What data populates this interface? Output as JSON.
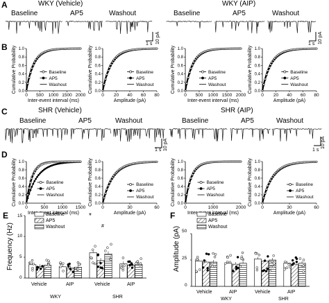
{
  "panels": {
    "A": "A",
    "B": "B",
    "C": "C",
    "D": "D",
    "E": "E",
    "F": "F"
  },
  "row_A": {
    "group_titles": [
      "WKY (Vehicle)",
      "WKY (AIP)"
    ],
    "conditions": [
      "Baseline",
      "AP5",
      "Washout"
    ],
    "scale_time": "1 s",
    "scale_amp": "10 pA"
  },
  "row_C": {
    "group_titles": [
      "SHR (Vehicle)",
      "SHR (AIP)"
    ],
    "conditions": [
      "Baseline",
      "AP5",
      "Washout"
    ],
    "scale_time": "1 s",
    "scale_amp": "10 pA"
  },
  "cdf_legend": [
    "Baseline",
    "AP5",
    "Washout"
  ],
  "cdf_plots": {
    "B_interval": {
      "ylabel": "Cumulative Probability",
      "xlabel": "Inter-event interval (ms)",
      "xticks": [
        "0",
        "500",
        "1000",
        "1500",
        "2000"
      ],
      "yticks": [
        "0.0",
        "0.2",
        "0.4",
        "0.6",
        "0.8",
        "1.0"
      ]
    },
    "B_amplitude": {
      "ylabel": "Cumulative Probability",
      "xlabel": "Amplitude (pA)",
      "xticks": [
        "0",
        "20",
        "40",
        "60",
        "80"
      ],
      "yticks": [
        "0.0",
        "0.2",
        "0.4",
        "0.6",
        "0.8",
        "1.0"
      ]
    },
    "B_interval_aip": {
      "ylabel": "Cumulative Probability",
      "xlabel": "Inter-event interval (ms)",
      "xticks": [
        "0",
        "500",
        "1000",
        "1500",
        "2000"
      ],
      "yticks": [
        "0.0",
        "0.2",
        "0.4",
        "0.6",
        "0.8",
        "1.0"
      ]
    },
    "B_amplitude_aip": {
      "ylabel": "Cumulative Probability",
      "xlabel": "Amplitude (pA)",
      "xticks": [
        "0",
        "20",
        "40",
        "60",
        "80"
      ],
      "yticks": [
        "0.0",
        "0.2",
        "0.4",
        "0.6",
        "0.8",
        "1.0"
      ]
    },
    "D_interval": {
      "ylabel": "Cumulative Probability",
      "xlabel": "Inter-event interval (ms)",
      "xticks": [
        "0",
        "500",
        "1000",
        "1500"
      ],
      "yticks": [
        "0.0",
        "0.2",
        "0.4",
        "0.6",
        "0.8",
        "1.0"
      ]
    },
    "D_amplitude": {
      "ylabel": "Cumulative Probability",
      "xlabel": "Amplitude (pA)",
      "xticks": [
        "0",
        "30",
        "60"
      ],
      "yticks": [
        "0.0",
        "0.2",
        "0.4",
        "0.6",
        "0.8",
        "1.0"
      ]
    },
    "D_interval_aip": {
      "ylabel": "Cumulative Probability",
      "xlabel": "Inter-event interval (ms)",
      "xticks": [
        "0",
        "1000",
        "2000"
      ],
      "yticks": [
        "0.0",
        "0.2",
        "0.4",
        "0.6",
        "0.8",
        "1.0"
      ]
    },
    "D_amplitude_aip": {
      "ylabel": "Cumulative Probability",
      "xlabel": "Amplitude (pA)",
      "xticks": [
        "0",
        "30",
        "60"
      ],
      "yticks": [
        "0.0",
        "0.2",
        "0.4",
        "0.6",
        "0.8",
        "1.0"
      ]
    }
  },
  "panel_E": {
    "ylabel": "Frequency (Hz)",
    "yticks": [
      "0",
      "5",
      "10",
      "15"
    ],
    "legend": [
      "Baseline",
      "AP5",
      "Washout"
    ],
    "group_labels": [
      "Vehicle",
      "AIP",
      "Vehicle",
      "AIP"
    ],
    "strain_labels": [
      "WKY",
      "SHR"
    ],
    "annotations": [
      "*",
      "#"
    ]
  },
  "panel_F": {
    "ylabel": "Amplitude (pA)",
    "yticks": [
      "0",
      "25",
      "50"
    ],
    "legend": [
      "Baseline",
      "AP5",
      "Washout"
    ],
    "group_labels": [
      "Vehicle",
      "AIP",
      "Vehicle",
      "AIP"
    ],
    "strain_labels": [
      "WKY",
      "SHR"
    ]
  },
  "chart_data": [
    {
      "type": "bar",
      "title": "",
      "ylabel": "Frequency (Hz)",
      "ylim": [
        0,
        15
      ],
      "categories": [
        "WKY Vehicle",
        "WKY AIP",
        "SHR Vehicle",
        "SHR AIP"
      ],
      "series": [
        {
          "name": "Baseline",
          "values": [
            3.2,
            2.7,
            6.1,
            3.4
          ]
        },
        {
          "name": "AP5",
          "values": [
            2.7,
            2.4,
            4.2,
            3.1
          ]
        },
        {
          "name": "Washout",
          "values": [
            3.1,
            2.6,
            5.8,
            3.3
          ]
        }
      ]
    },
    {
      "type": "bar",
      "title": "",
      "ylabel": "Amplitude (pA)",
      "ylim": [
        0,
        50
      ],
      "categories": [
        "WKY Vehicle",
        "WKY AIP",
        "SHR Vehicle",
        "SHR AIP"
      ],
      "series": [
        {
          "name": "Baseline",
          "values": [
            24,
            22,
            26,
            22
          ]
        },
        {
          "name": "AP5",
          "values": [
            23,
            21,
            24,
            21
          ]
        },
        {
          "name": "Washout",
          "values": [
            23,
            22,
            25,
            22
          ]
        }
      ]
    }
  ]
}
